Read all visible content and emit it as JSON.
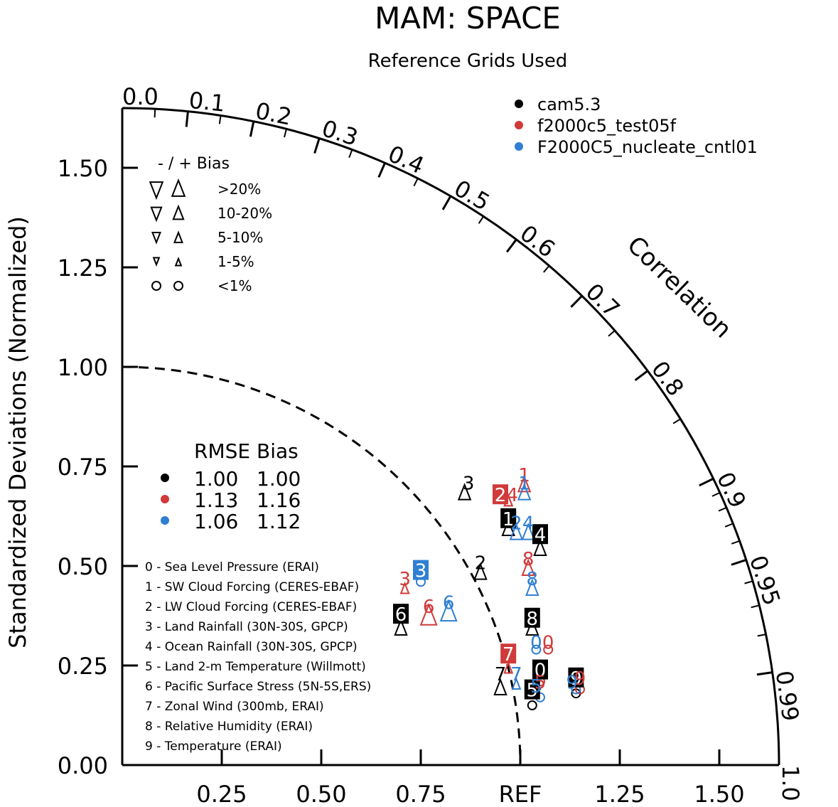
{
  "colors": {
    "axis": "#000000",
    "m1": "#000000",
    "m2": "#d03a3a",
    "m3": "#2f7fd2"
  },
  "chart_data": {
    "type": "scatter",
    "title": "MAM: SPACE",
    "subtitle": "Reference Grids Used",
    "ylabel": "Standardized Deviations (Normalized)",
    "correlation_label": "Correlation",
    "ref_label": "REF",
    "x_ticks": [
      "0.25",
      "0.50",
      "0.75",
      "REF",
      "1.25",
      "1.50"
    ],
    "y_ticks": [
      "0.00",
      "0.25",
      "0.50",
      "0.75",
      "1.00",
      "1.25",
      "1.50"
    ],
    "corr_ticks": [
      "0.0",
      "0.1",
      "0.2",
      "0.3",
      "0.4",
      "0.5",
      "0.6",
      "0.7",
      "0.8",
      "0.9",
      "0.95",
      "0.99",
      "1.0"
    ],
    "legend_models": [
      {
        "name": "cam5.3",
        "color": "#000000"
      },
      {
        "name": "f2000c5_test05f",
        "color": "#d03a3a"
      },
      {
        "name": "F2000C5_nucleate_cntl01",
        "color": "#2f7fd2"
      }
    ],
    "bias_legend": {
      "header": "- / +      Bias",
      "rows": [
        ">20%",
        "10-20%",
        "5-10%",
        "1-5%",
        "<1%"
      ]
    },
    "rmse_table": {
      "header": "RMSE Bias",
      "rows": [
        {
          "rmse": "1.00",
          "bias": "1.00",
          "color": "#000000"
        },
        {
          "rmse": "1.13",
          "bias": "1.16",
          "color": "#d03a3a"
        },
        {
          "rmse": "1.06",
          "bias": "1.12",
          "color": "#2f7fd2"
        }
      ]
    },
    "variables": [
      "0 - Sea Level Pressure (ERAI)",
      "1 - SW Cloud Forcing (CERES-EBAF)",
      "2 - LW Cloud Forcing (CERES-EBAF)",
      "3 - Land Rainfall (30N-30S, GPCP)",
      "4 - Ocean Rainfall (30N-30S, GPCP)",
      "5 - Land 2-m Temperature (Willmott)",
      "6 - Pacific Surface Stress (5N-5S,ERS)",
      "7 - Zonal Wind (300mb, ERAI)",
      "8 - Relative Humidity (ERAI)",
      "9 - Temperature (ERAI)"
    ],
    "std_max": 1.65,
    "series": [
      {
        "name": "cam5.3",
        "color": "#000000",
        "points": [
          {
            "id": 0,
            "x": 1.03,
            "y": 0.15,
            "sym": "circle"
          },
          {
            "id": 1,
            "x": 0.97,
            "y": 0.59,
            "sym": "up"
          },
          {
            "id": 2,
            "x": 0.9,
            "y": 0.48,
            "sym": "up"
          },
          {
            "id": 3,
            "x": 0.86,
            "y": 0.68,
            "sym": "up"
          },
          {
            "id": 4,
            "x": 1.05,
            "y": 0.54,
            "sym": "up"
          },
          {
            "id": 5,
            "x": 1.04,
            "y": 0.2,
            "sym": "up-small"
          },
          {
            "id": 6,
            "x": 0.7,
            "y": 0.34,
            "sym": "up"
          },
          {
            "id": 7,
            "x": 0.95,
            "y": 0.19,
            "sym": "up"
          },
          {
            "id": 8,
            "x": 1.03,
            "y": 0.34,
            "sym": "up"
          },
          {
            "id": 9,
            "x": 1.14,
            "y": 0.18,
            "sym": "circle"
          }
        ]
      },
      {
        "name": "f2000c5_test05f",
        "color": "#d03a3a",
        "points": [
          {
            "id": 0,
            "x": 1.07,
            "y": 0.29,
            "sym": "circle"
          },
          {
            "id": 1,
            "x": 1.01,
            "y": 0.7,
            "sym": "up"
          },
          {
            "id": 2,
            "x": 0.97,
            "y": 0.66,
            "sym": "up-small"
          },
          {
            "id": 3,
            "x": 0.71,
            "y": 0.44,
            "sym": "up-small"
          },
          {
            "id": 4,
            "x": 0.97,
            "y": 0.66,
            "sym": "up-small"
          },
          {
            "id": 5,
            "x": 1.05,
            "y": 0.21,
            "sym": "circle"
          },
          {
            "id": 6,
            "x": 0.77,
            "y": 0.37,
            "sym": "up-large"
          },
          {
            "id": 7,
            "x": 0.97,
            "y": 0.24,
            "sym": "up-small"
          },
          {
            "id": 8,
            "x": 1.02,
            "y": 0.49,
            "sym": "up"
          },
          {
            "id": 9,
            "x": 1.15,
            "y": 0.19,
            "sym": "circle"
          }
        ]
      },
      {
        "name": "F2000C5_nucleate_cntl01",
        "color": "#2f7fd2",
        "points": [
          {
            "id": 0,
            "x": 1.04,
            "y": 0.29,
            "sym": "circle"
          },
          {
            "id": 1,
            "x": 1.01,
            "y": 0.68,
            "sym": "up"
          },
          {
            "id": 2,
            "x": 0.99,
            "y": 0.58,
            "sym": "up"
          },
          {
            "id": 3,
            "x": 0.75,
            "y": 0.46,
            "sym": "circle"
          },
          {
            "id": 4,
            "x": 1.02,
            "y": 0.58,
            "sym": "up"
          },
          {
            "id": 5,
            "x": 1.05,
            "y": 0.17,
            "sym": "circle"
          },
          {
            "id": 6,
            "x": 0.82,
            "y": 0.38,
            "sym": "up-large"
          },
          {
            "id": 7,
            "x": 0.99,
            "y": 0.2,
            "sym": "up-small"
          },
          {
            "id": 8,
            "x": 1.03,
            "y": 0.44,
            "sym": "up"
          },
          {
            "id": 9,
            "x": 1.14,
            "y": 0.19,
            "sym": "circle"
          }
        ]
      }
    ],
    "labels": [
      {
        "text": "0",
        "series": 2,
        "x": 1.04,
        "y": 0.31,
        "boxed": false
      },
      {
        "text": "0",
        "series": 1,
        "x": 1.07,
        "y": 0.31,
        "boxed": false
      },
      {
        "text": "0",
        "series": 0,
        "x": 1.05,
        "y": 0.24,
        "boxed": true
      },
      {
        "text": "1",
        "series": 1,
        "x": 1.01,
        "y": 0.73,
        "boxed": false
      },
      {
        "text": "1",
        "series": 2,
        "x": 1.01,
        "y": 0.71,
        "boxed": false
      },
      {
        "text": "1",
        "series": 0,
        "x": 0.97,
        "y": 0.62,
        "boxed": true
      },
      {
        "text": "2",
        "series": 1,
        "x": 0.95,
        "y": 0.68,
        "boxed": true
      },
      {
        "text": "2",
        "series": 0,
        "x": 0.9,
        "y": 0.51,
        "boxed": false
      },
      {
        "text": "2",
        "series": 2,
        "x": 0.99,
        "y": 0.61,
        "boxed": false
      },
      {
        "text": "3",
        "series": 0,
        "x": 0.87,
        "y": 0.71,
        "boxed": false
      },
      {
        "text": "3",
        "series": 2,
        "x": 0.75,
        "y": 0.49,
        "boxed": true
      },
      {
        "text": "3",
        "series": 1,
        "x": 0.71,
        "y": 0.47,
        "boxed": false
      },
      {
        "text": "4",
        "series": 1,
        "x": 0.98,
        "y": 0.68,
        "boxed": false
      },
      {
        "text": "4",
        "series": 0,
        "x": 1.05,
        "y": 0.58,
        "boxed": true
      },
      {
        "text": "4",
        "series": 2,
        "x": 1.02,
        "y": 0.61,
        "boxed": false
      },
      {
        "text": "5",
        "series": 0,
        "x": 1.03,
        "y": 0.19,
        "boxed": true
      },
      {
        "text": "5",
        "series": 1,
        "x": 1.05,
        "y": 0.21,
        "boxed": false
      },
      {
        "text": "5",
        "series": 2,
        "x": 1.04,
        "y": 0.2,
        "boxed": false
      },
      {
        "text": "6",
        "series": 0,
        "x": 0.7,
        "y": 0.38,
        "boxed": true
      },
      {
        "text": "6",
        "series": 1,
        "x": 0.77,
        "y": 0.4,
        "boxed": false
      },
      {
        "text": "6",
        "series": 2,
        "x": 0.82,
        "y": 0.41,
        "boxed": false
      },
      {
        "text": "7",
        "series": 1,
        "x": 0.97,
        "y": 0.28,
        "boxed": true
      },
      {
        "text": "7",
        "series": 0,
        "x": 0.95,
        "y": 0.23,
        "boxed": false
      },
      {
        "text": "7",
        "series": 2,
        "x": 0.99,
        "y": 0.23,
        "boxed": false
      },
      {
        "text": "8",
        "series": 1,
        "x": 1.02,
        "y": 0.52,
        "boxed": false
      },
      {
        "text": "8",
        "series": 0,
        "x": 1.03,
        "y": 0.37,
        "boxed": true
      },
      {
        "text": "8",
        "series": 2,
        "x": 1.03,
        "y": 0.47,
        "boxed": false
      },
      {
        "text": "9",
        "series": 0,
        "x": 1.14,
        "y": 0.22,
        "boxed": true
      },
      {
        "text": "9",
        "series": 1,
        "x": 1.15,
        "y": 0.22,
        "boxed": false
      },
      {
        "text": "9",
        "series": 2,
        "x": 1.13,
        "y": 0.21,
        "boxed": false
      }
    ]
  }
}
